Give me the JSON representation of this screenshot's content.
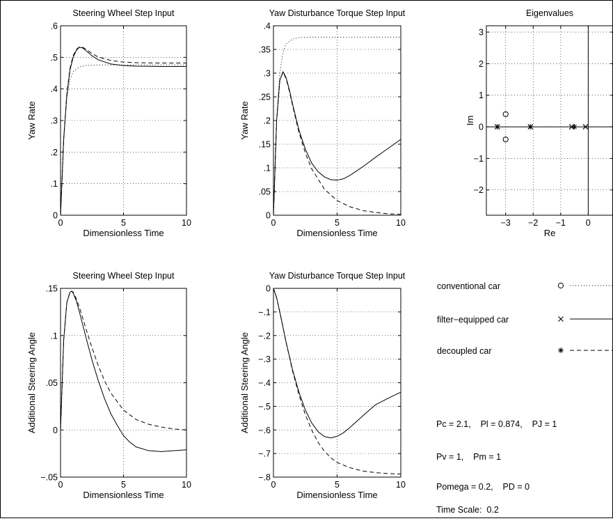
{
  "chart_data": [
    {
      "id": "yaw-rate-steering",
      "type": "line",
      "title": "Steering Wheel Step Input",
      "xlabel": "Dimensionless Time",
      "ylabel": "Yaw Rate",
      "xlim": [
        0,
        10
      ],
      "ylim": [
        0,
        0.6
      ],
      "xticks": [
        0,
        5,
        10
      ],
      "yticks": [
        0,
        0.1,
        0.2,
        0.3,
        0.4,
        0.5,
        0.6
      ],
      "grid": true,
      "series": [
        {
          "style": "dotted",
          "x": [
            0,
            0.25,
            0.5,
            0.75,
            1.0,
            1.5,
            2.0,
            3.0,
            5.0,
            10.0
          ],
          "y": [
            0,
            0.25,
            0.37,
            0.43,
            0.455,
            0.47,
            0.474,
            0.476,
            0.476,
            0.476
          ]
        },
        {
          "style": "solid",
          "x": [
            0,
            0.25,
            0.5,
            0.75,
            1.0,
            1.25,
            1.5,
            1.75,
            2.0,
            2.5,
            3.0,
            4.0,
            5.0,
            6.0,
            8.0,
            10.0
          ],
          "y": [
            0,
            0.24,
            0.38,
            0.46,
            0.5,
            0.522,
            0.532,
            0.53,
            0.522,
            0.505,
            0.492,
            0.479,
            0.474,
            0.472,
            0.471,
            0.471
          ]
        },
        {
          "style": "dashed",
          "x": [
            0,
            0.25,
            0.5,
            0.75,
            1.0,
            1.25,
            1.5,
            1.75,
            2.0,
            2.5,
            3.0,
            4.0,
            5.0,
            6.0,
            8.0,
            10.0
          ],
          "y": [
            0,
            0.24,
            0.385,
            0.465,
            0.505,
            0.525,
            0.533,
            0.532,
            0.526,
            0.512,
            0.501,
            0.49,
            0.485,
            0.483,
            0.482,
            0.482
          ]
        }
      ]
    },
    {
      "id": "yaw-rate-torque",
      "type": "line",
      "title": "Yaw Disturbance Torque Step Input",
      "xlabel": "Dimensionless Time",
      "ylabel": "Yaw Rate",
      "xlim": [
        0,
        10
      ],
      "ylim": [
        0,
        0.4
      ],
      "xticks": [
        0,
        5,
        10
      ],
      "yticks": [
        0,
        0.05,
        0.1,
        0.15,
        0.2,
        0.25,
        0.3,
        0.35,
        0.4
      ],
      "grid": true,
      "series": [
        {
          "style": "dotted",
          "x": [
            0,
            0.25,
            0.5,
            0.75,
            1.0,
            1.5,
            2.0,
            3.0,
            5.0,
            10.0
          ],
          "y": [
            0,
            0.2,
            0.3,
            0.345,
            0.362,
            0.372,
            0.375,
            0.376,
            0.376,
            0.376
          ]
        },
        {
          "style": "solid",
          "x": [
            0,
            0.25,
            0.5,
            0.75,
            1.0,
            1.25,
            1.5,
            2.0,
            2.5,
            3.0,
            3.5,
            4.0,
            4.5,
            5.0,
            5.5,
            6.0,
            7.0,
            8.0,
            9.0,
            10.0
          ],
          "y": [
            0,
            0.2,
            0.285,
            0.303,
            0.29,
            0.265,
            0.235,
            0.18,
            0.14,
            0.11,
            0.092,
            0.081,
            0.075,
            0.074,
            0.077,
            0.084,
            0.102,
            0.122,
            0.141,
            0.16
          ]
        },
        {
          "style": "dashed",
          "x": [
            0,
            0.25,
            0.5,
            0.75,
            1.0,
            1.25,
            1.5,
            2.0,
            2.5,
            3.0,
            4.0,
            5.0,
            6.0,
            7.0,
            8.0,
            9.0,
            10.0
          ],
          "y": [
            0,
            0.2,
            0.285,
            0.302,
            0.288,
            0.262,
            0.232,
            0.175,
            0.132,
            0.098,
            0.055,
            0.031,
            0.018,
            0.01,
            0.006,
            0.003,
            0.002
          ]
        }
      ]
    },
    {
      "id": "eigenvalues",
      "type": "scatter",
      "title": "Eigenvalues",
      "xlabel": "Re",
      "ylabel": "Im",
      "xlim": [
        -3.7,
        0.9
      ],
      "ylim": [
        -2.8,
        3.2
      ],
      "xticks": [
        -3,
        -2,
        -1,
        0
      ],
      "yticks": [
        -2,
        -1,
        0,
        1,
        2,
        3
      ],
      "grid": true,
      "axis_lines": true,
      "points": [
        {
          "marker": "o",
          "x": -3.0,
          "y": 0.4
        },
        {
          "marker": "o",
          "x": -3.0,
          "y": -0.4
        },
        {
          "marker": "x",
          "x": -3.3,
          "y": 0
        },
        {
          "marker": "x",
          "x": -2.1,
          "y": 0
        },
        {
          "marker": "x",
          "x": -0.6,
          "y": 0
        },
        {
          "marker": "x",
          "x": -0.1,
          "y": 0
        },
        {
          "marker": "*",
          "x": -3.3,
          "y": 0
        },
        {
          "marker": "*",
          "x": -2.1,
          "y": 0
        },
        {
          "marker": "*",
          "x": -0.5,
          "y": 0
        }
      ]
    },
    {
      "id": "steer-angle-steering",
      "type": "line",
      "title": "Steering Wheel Step Input",
      "xlabel": "Dimensionless Time",
      "ylabel": "Additional Steering Angle",
      "xlim": [
        0,
        10
      ],
      "ylim": [
        -0.05,
        0.15
      ],
      "xticks": [
        0,
        5,
        10
      ],
      "yticks": [
        -0.05,
        0,
        0.05,
        0.1,
        0.15
      ],
      "grid": true,
      "series": [
        {
          "style": "solid",
          "x": [
            0,
            0.25,
            0.5,
            0.75,
            0.9,
            1.0,
            1.25,
            1.5,
            2.0,
            2.5,
            3.0,
            3.5,
            4.0,
            4.5,
            5.0,
            5.5,
            6.0,
            7.0,
            8.0,
            9.0,
            10.0
          ],
          "y": [
            0,
            0.095,
            0.135,
            0.146,
            0.147,
            0.145,
            0.137,
            0.125,
            0.099,
            0.074,
            0.052,
            0.033,
            0.017,
            0.005,
            -0.006,
            -0.013,
            -0.018,
            -0.022,
            -0.023,
            -0.022,
            -0.021
          ]
        },
        {
          "style": "dashed",
          "x": [
            0,
            0.25,
            0.5,
            0.75,
            0.9,
            1.0,
            1.25,
            1.5,
            2.0,
            2.5,
            3.0,
            3.5,
            4.0,
            5.0,
            6.0,
            7.0,
            8.0,
            9.0,
            10.0
          ],
          "y": [
            0,
            0.095,
            0.135,
            0.146,
            0.147,
            0.146,
            0.139,
            0.13,
            0.108,
            0.087,
            0.068,
            0.052,
            0.039,
            0.021,
            0.011,
            0.006,
            0.003,
            0.001,
            0.0
          ]
        }
      ]
    },
    {
      "id": "steer-angle-torque",
      "type": "line",
      "title": "Yaw Disturbance Torque Step Input",
      "xlabel": "Dimensionless Time",
      "ylabel": "Additional Steering Angle",
      "xlim": [
        0,
        10
      ],
      "ylim": [
        -0.8,
        0
      ],
      "xticks": [
        0,
        5,
        10
      ],
      "yticks": [
        -0.8,
        -0.7,
        -0.6,
        -0.5,
        -0.4,
        -0.3,
        -0.2,
        -0.1,
        0
      ],
      "grid": true,
      "series": [
        {
          "style": "solid",
          "x": [
            0,
            0.25,
            0.5,
            0.75,
            1.0,
            1.5,
            2.0,
            2.5,
            3.0,
            3.5,
            4.0,
            4.5,
            5.0,
            5.5,
            6.0,
            7.0,
            8.0,
            9.0,
            10.0
          ],
          "y": [
            0,
            -0.04,
            -0.1,
            -0.165,
            -0.23,
            -0.345,
            -0.44,
            -0.515,
            -0.57,
            -0.607,
            -0.628,
            -0.634,
            -0.627,
            -0.612,
            -0.59,
            -0.541,
            -0.494,
            -0.466,
            -0.44
          ]
        },
        {
          "style": "dashed",
          "x": [
            0,
            0.25,
            0.5,
            0.75,
            1.0,
            1.5,
            2.0,
            2.5,
            3.0,
            3.5,
            4.0,
            4.5,
            5.0,
            6.0,
            7.0,
            8.0,
            9.0,
            10.0
          ],
          "y": [
            0,
            -0.04,
            -0.1,
            -0.165,
            -0.23,
            -0.35,
            -0.45,
            -0.535,
            -0.6,
            -0.652,
            -0.69,
            -0.718,
            -0.738,
            -0.76,
            -0.774,
            -0.781,
            -0.785,
            -0.787
          ]
        }
      ]
    }
  ],
  "legend": {
    "position": "bottom-right",
    "entries": [
      {
        "label": "conventional car",
        "marker": "o",
        "line": "dotted"
      },
      {
        "label": "filter−equipped car",
        "marker": "x",
        "line": "solid"
      },
      {
        "label": "decoupled car",
        "marker": "*",
        "line": "dashed"
      }
    ]
  },
  "parameters": [
    "Pc = 2.1,    Pl = 0.874,    PJ = 1",
    "Pv = 1,    Pm = 1",
    "Pomega = 0.2,    PD = 0",
    "Time Scale:  0.2"
  ]
}
